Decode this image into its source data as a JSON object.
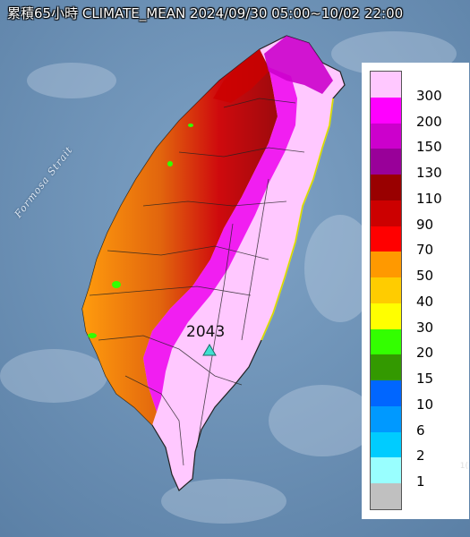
{
  "title": "累積65小時 CLIMATE_MEAN 2024/09/30 05:00~10/02 22:00",
  "strait_label": "Formosa Strait",
  "max_marker": {
    "value": "2043",
    "icon": "triangle-icon",
    "color": "#3fe0d0"
  },
  "legend": {
    "items": [
      {
        "label": "300",
        "color": "#ffc8ff"
      },
      {
        "label": "200",
        "color": "#ff00ff"
      },
      {
        "label": "150",
        "color": "#cc00cc"
      },
      {
        "label": "130",
        "color": "#990099"
      },
      {
        "label": "110",
        "color": "#990000"
      },
      {
        "label": "90",
        "color": "#cc0000"
      },
      {
        "label": "70",
        "color": "#ff0000"
      },
      {
        "label": "50",
        "color": "#ff9900"
      },
      {
        "label": "40",
        "color": "#ffcc00"
      },
      {
        "label": "30",
        "color": "#ffff00"
      },
      {
        "label": "20",
        "color": "#33ff00"
      },
      {
        "label": "15",
        "color": "#339900"
      },
      {
        "label": "10",
        "color": "#0066ff"
      },
      {
        "label": "6",
        "color": "#0099ff"
      },
      {
        "label": "2",
        "color": "#00ccff"
      },
      {
        "label": "1",
        "color": "#99ffff"
      },
      {
        "label": "",
        "color": "#c0c0c0"
      }
    ]
  },
  "corner_text": "1("
}
